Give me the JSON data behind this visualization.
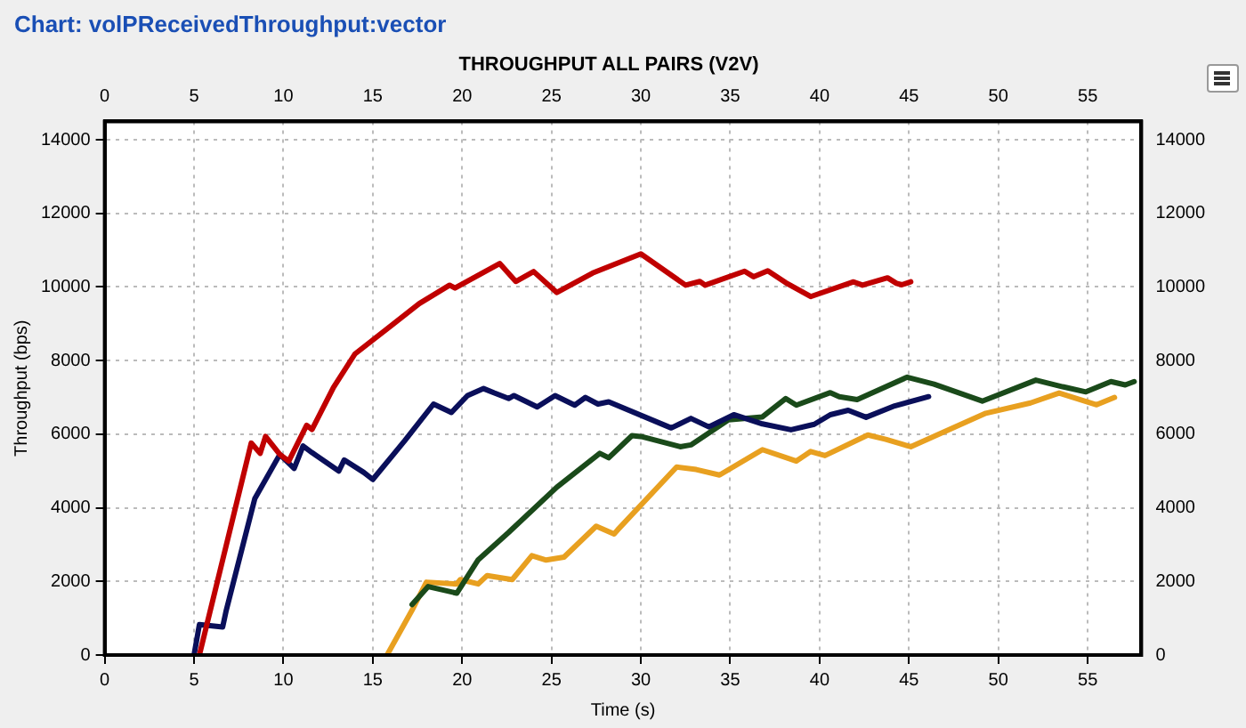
{
  "chart_data": {
    "type": "line",
    "subtitle": "Chart: volPReceivedThroughput:vector",
    "title": "THROUGHPUT ALL PAIRS (V2V)",
    "xlabel": "Time (s)",
    "ylabel": "Throughput (bps)",
    "xlim": [
      0,
      58
    ],
    "xticks": [
      0,
      5,
      10,
      15,
      20,
      25,
      30,
      35,
      40,
      45,
      50,
      55
    ],
    "x2lim": [
      0,
      58
    ],
    "x2ticks": [
      0,
      5,
      10,
      15,
      20,
      25,
      30,
      35,
      40,
      45,
      50,
      55
    ],
    "ylim": [
      0,
      14500
    ],
    "yticks": [
      0,
      2000,
      4000,
      6000,
      8000,
      10000,
      12000,
      14000
    ],
    "y2lim": [
      0,
      14500
    ],
    "y2ticks": [
      0,
      2000,
      4000,
      6000,
      8000,
      10000,
      12000,
      14000
    ],
    "grid": true,
    "legend": false,
    "marker": "none",
    "line_style": "solid",
    "series": [
      {
        "color": "#c00000",
        "x": [
          5.3,
          8.2,
          8.7,
          9.0,
          9.8,
          10.3,
          11.3,
          11.6,
          12.8,
          14.0,
          16.0,
          17.6,
          19.3,
          19.6,
          22.1,
          23.0,
          24.0,
          25.3,
          27.3,
          30.0,
          32.5,
          33.3,
          33.6,
          35.8,
          36.3,
          37.1,
          38.1,
          39.5,
          41.9,
          42.4,
          43.8,
          44.3,
          44.6,
          45.1
        ],
        "values": [
          0,
          5760,
          5480,
          5940,
          5450,
          5270,
          6240,
          6130,
          7270,
          8180,
          8940,
          9550,
          10050,
          9970,
          10640,
          10150,
          10420,
          9850,
          10380,
          10900,
          10050,
          10150,
          10050,
          10430,
          10280,
          10440,
          10120,
          9740,
          10140,
          10050,
          10250,
          10100,
          10060,
          10140
        ]
      },
      {
        "color": "#0a0f5a",
        "x": [
          5.0,
          5.3,
          6.6,
          6.8,
          8.4,
          9.8,
          10.6,
          11.1,
          11.6,
          13.1,
          13.4,
          14.5,
          15.0,
          16.8,
          18.4,
          19.4,
          20.3,
          21.2,
          21.8,
          22.6,
          22.9,
          24.2,
          25.2,
          26.3,
          26.9,
          27.6,
          28.2,
          31.7,
          32.8,
          33.8,
          35.2,
          36.8,
          38.4,
          39.7,
          40.6,
          41.6,
          42.6,
          44.2,
          46.1
        ],
        "values": [
          0,
          830,
          760,
          1210,
          4250,
          5450,
          5070,
          5680,
          5500,
          5000,
          5300,
          4960,
          4770,
          5830,
          6820,
          6590,
          7050,
          7240,
          7120,
          6970,
          7050,
          6740,
          7050,
          6790,
          7000,
          6820,
          6880,
          6170,
          6430,
          6200,
          6530,
          6280,
          6120,
          6270,
          6530,
          6650,
          6460,
          6770,
          7020
        ]
      },
      {
        "color": "#1a4a1a",
        "x": [
          17.2,
          18.1,
          19.7,
          20.9,
          22.6,
          25.3,
          27.7,
          28.2,
          29.5,
          30.1,
          32.2,
          32.8,
          34.9,
          36.8,
          38.1,
          38.7,
          40.6,
          41.1,
          42.1,
          44.9,
          46.4,
          49.1,
          52.1,
          53.6,
          54.9,
          56.3,
          57.1,
          57.6
        ],
        "values": [
          1370,
          1860,
          1680,
          2590,
          3330,
          4560,
          5480,
          5360,
          5960,
          5930,
          5660,
          5710,
          6390,
          6470,
          6970,
          6790,
          7130,
          7020,
          6940,
          7550,
          7360,
          6900,
          7470,
          7290,
          7150,
          7430,
          7340,
          7430
        ]
      },
      {
        "color": "#e8a020",
        "x": [
          15.8,
          17.2,
          18.0,
          19.7,
          19.9,
          20.9,
          21.4,
          22.8,
          23.9,
          24.7,
          25.7,
          27.5,
          28.5,
          28.7,
          32.0,
          33.1,
          34.4,
          36.8,
          38.7,
          39.5,
          40.3,
          42.7,
          43.7,
          45.1,
          49.3,
          51.8,
          53.4,
          55.5,
          56.5
        ],
        "values": [
          0,
          1220,
          1980,
          1930,
          2050,
          1930,
          2160,
          2050,
          2700,
          2580,
          2660,
          3500,
          3290,
          3400,
          5110,
          5040,
          4890,
          5580,
          5270,
          5530,
          5420,
          5980,
          5860,
          5660,
          6570,
          6850,
          7120,
          6800,
          7000
        ]
      }
    ]
  }
}
